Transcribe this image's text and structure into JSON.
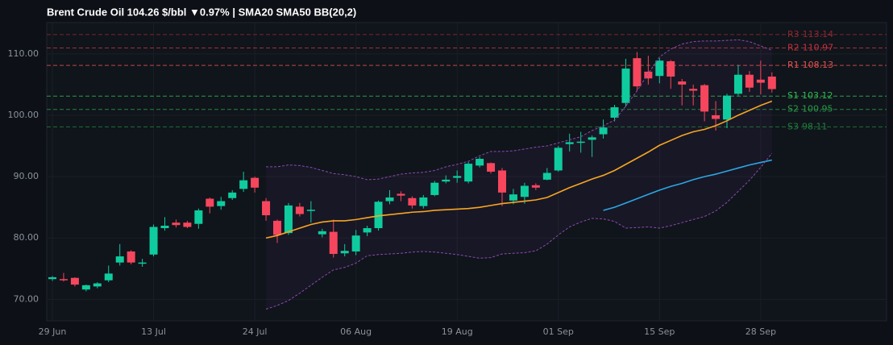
{
  "chart_data": {
    "type": "candlestick",
    "title": "Brent Crude Oil  104.26 $/bbl  ▼0.97%  |  SMA20  SMA50  BB(20,2)",
    "categories": [
      "29 Jun",
      null,
      null,
      null,
      null,
      null,
      null,
      null,
      null,
      "13 Jul",
      null,
      null,
      null,
      null,
      null,
      null,
      null,
      null,
      "24 Jul",
      null,
      null,
      null,
      null,
      null,
      null,
      null,
      null,
      "06 Aug",
      null,
      null,
      null,
      null,
      null,
      null,
      null,
      null,
      "19 Aug",
      null,
      null,
      null,
      null,
      null,
      null,
      null,
      null,
      "01 Sep",
      null,
      null,
      null,
      null,
      null,
      null,
      null,
      null,
      "15 Sep",
      null,
      null,
      null,
      null,
      null,
      null,
      null,
      null,
      "28 Sep",
      null
    ],
    "open": [
      73.3,
      73.3,
      73.5,
      71.6,
      72.1,
      73.1,
      76.0,
      77.8,
      75.8,
      77.3,
      81.6,
      82.5,
      82.5,
      82.3,
      86.4,
      85.2,
      86.5,
      88.0,
      89.8,
      86.0,
      82.8,
      80.8,
      85.1,
      84.4,
      80.6,
      81.0,
      77.5,
      77.8,
      80.9,
      81.6,
      86.0,
      87.2,
      86.5,
      85.2,
      87.0,
      89.2,
      89.8,
      89.2,
      91.8,
      92.2,
      91.0,
      86.1,
      86.7,
      88.6,
      89.5,
      91.0,
      95.3,
      95.5,
      96.0,
      96.9,
      99.6,
      102.0,
      109.3,
      107.1,
      106.4,
      108.8,
      105.5,
      104.3,
      104.9,
      100.0,
      99.3,
      103.5,
      106.6,
      105.8,
      106.3
    ],
    "high": [
      73.8,
      74.3,
      73.6,
      72.4,
      72.8,
      75.5,
      79.0,
      78.0,
      76.6,
      82.2,
      83.4,
      83.0,
      82.8,
      84.8,
      86.6,
      86.7,
      87.8,
      90.8,
      90.0,
      86.5,
      83.0,
      85.7,
      85.7,
      86.0,
      81.5,
      83.0,
      79.0,
      81.3,
      82.0,
      86.1,
      87.8,
      87.6,
      86.8,
      87.0,
      89.3,
      90.2,
      91.0,
      92.4,
      93.2,
      92.3,
      91.4,
      88.0,
      89.0,
      88.9,
      91.4,
      95.0,
      97.0,
      97.3,
      96.7,
      99.3,
      101.7,
      109.2,
      110.3,
      109.7,
      109.3,
      109.0,
      105.9,
      105.0,
      105.1,
      102.3,
      103.5,
      108.2,
      107.2,
      108.9,
      107.0
    ],
    "low": [
      73.0,
      72.9,
      72.1,
      71.3,
      71.8,
      72.8,
      75.5,
      75.7,
      75.3,
      77.0,
      81.2,
      81.7,
      81.6,
      81.5,
      84.0,
      84.6,
      86.2,
      87.5,
      87.4,
      82.8,
      79.2,
      80.5,
      83.5,
      82.5,
      80.1,
      76.8,
      77.0,
      77.2,
      80.3,
      81.2,
      85.5,
      86.0,
      84.8,
      84.8,
      86.8,
      88.9,
      89.0,
      88.9,
      91.5,
      90.5,
      85.2,
      85.5,
      85.6,
      87.8,
      89.4,
      90.8,
      94.1,
      93.9,
      93.2,
      96.2,
      99.0,
      101.4,
      103.9,
      105.0,
      105.2,
      104.3,
      101.6,
      101.6,
      99.0,
      97.5,
      97.9,
      103.2,
      103.8,
      103.4,
      103.7
    ],
    "close": [
      73.6,
      73.1,
      72.4,
      72.3,
      72.6,
      74.2,
      77.0,
      76.0,
      76.0,
      81.8,
      82.0,
      82.1,
      81.8,
      84.5,
      85.1,
      86.0,
      87.4,
      89.4,
      88.2,
      83.7,
      80.5,
      85.3,
      83.9,
      84.6,
      81.1,
      77.4,
      77.9,
      80.4,
      81.6,
      85.9,
      86.6,
      86.9,
      85.3,
      86.6,
      89.0,
      89.5,
      90.1,
      92.1,
      92.9,
      90.8,
      87.4,
      87.1,
      88.5,
      88.2,
      90.6,
      94.7,
      95.6,
      95.7,
      96.4,
      98.0,
      101.3,
      107.6,
      104.7,
      106.0,
      108.9,
      106.3,
      105.0,
      104.0,
      100.6,
      99.4,
      103.2,
      106.6,
      104.5,
      105.3,
      104.26
    ],
    "up_color": "#0fcc9f",
    "down_color": "#f6465d",
    "overlays": {
      "sma20": {
        "color": "#f5a623",
        "dash": false,
        "values": [
          null,
          null,
          null,
          null,
          null,
          null,
          null,
          null,
          null,
          null,
          null,
          null,
          null,
          null,
          null,
          null,
          null,
          null,
          null,
          80.0,
          80.4,
          81.0,
          81.6,
          82.2,
          82.6,
          82.8,
          82.8,
          83.0,
          83.3,
          83.6,
          83.8,
          84.0,
          84.2,
          84.3,
          84.5,
          84.6,
          84.7,
          84.8,
          85.0,
          85.3,
          85.6,
          85.8,
          86.0,
          86.2,
          86.6,
          87.4,
          88.2,
          88.9,
          89.6,
          90.2,
          91.0,
          92.0,
          93.0,
          94.0,
          95.1,
          95.9,
          96.7,
          97.3,
          97.7,
          98.3,
          99.1,
          100.0,
          100.8,
          101.6,
          102.3
        ]
      },
      "sma50": {
        "color": "#2aa7e4",
        "dash": false,
        "values": [
          null,
          null,
          null,
          null,
          null,
          null,
          null,
          null,
          null,
          null,
          null,
          null,
          null,
          null,
          null,
          null,
          null,
          null,
          null,
          null,
          null,
          null,
          null,
          null,
          null,
          null,
          null,
          null,
          null,
          null,
          null,
          null,
          null,
          null,
          null,
          null,
          null,
          null,
          null,
          null,
          null,
          null,
          null,
          null,
          null,
          null,
          null,
          null,
          null,
          84.5,
          85.0,
          85.7,
          86.4,
          87.1,
          87.8,
          88.4,
          88.9,
          89.5,
          90.0,
          90.4,
          90.9,
          91.4,
          91.9,
          92.3,
          92.7
        ]
      },
      "bb_upper": {
        "color": "#8a4bb0",
        "dash": true,
        "values": [
          null,
          null,
          null,
          null,
          null,
          null,
          null,
          null,
          null,
          null,
          null,
          null,
          null,
          null,
          null,
          null,
          null,
          null,
          null,
          91.6,
          91.6,
          91.9,
          91.8,
          91.5,
          91.0,
          90.5,
          90.3,
          90.0,
          89.5,
          89.6,
          90.0,
          90.4,
          90.6,
          90.7,
          91.0,
          91.6,
          92.0,
          92.5,
          93.4,
          94.1,
          94.1,
          94.2,
          94.5,
          94.8,
          95.0,
          95.5,
          96.0,
          96.5,
          97.5,
          98.3,
          99.2,
          101.5,
          104.0,
          106.8,
          109.5,
          110.8,
          111.6,
          112.0,
          112.1,
          112.1,
          112.2,
          112.3,
          112.0,
          111.3,
          110.6
        ]
      },
      "bb_lower": {
        "color": "#8a4bb0",
        "dash": true,
        "values": [
          null,
          null,
          null,
          null,
          null,
          null,
          null,
          null,
          null,
          null,
          null,
          null,
          null,
          null,
          null,
          null,
          null,
          null,
          null,
          68.4,
          69.0,
          69.8,
          71.0,
          72.3,
          73.6,
          74.8,
          75.2,
          75.9,
          77.1,
          77.3,
          77.4,
          77.5,
          77.7,
          77.8,
          77.7,
          77.5,
          77.3,
          77.0,
          76.7,
          76.8,
          77.4,
          77.5,
          77.6,
          77.9,
          79.0,
          80.5,
          81.8,
          82.6,
          83.2,
          83.1,
          82.7,
          81.6,
          81.7,
          81.8,
          81.6,
          82.0,
          82.5,
          83.0,
          83.5,
          84.4,
          85.8,
          87.6,
          89.4,
          91.5,
          93.8
        ]
      }
    },
    "levels": [
      {
        "name": "R3",
        "value": 113.14,
        "color": "#8c2a2f"
      },
      {
        "name": "R2",
        "value": 110.97,
        "color": "#c0323c"
      },
      {
        "name": "R1",
        "value": 108.13,
        "color": "#e0524f"
      },
      {
        "name": "S1",
        "value": 103.12,
        "color": "#2fb84f"
      },
      {
        "name": "S2",
        "value": 100.95,
        "color": "#279a45"
      },
      {
        "name": "S3",
        "value": 98.11,
        "color": "#1f7f3a"
      }
    ],
    "ylim": [
      66.5,
      115.1
    ],
    "yticks": [
      {
        "value": 70,
        "label": "70.00"
      },
      {
        "value": 80,
        "label": "80.00"
      },
      {
        "value": 90,
        "label": "90.00"
      },
      {
        "value": 100,
        "label": "100.00"
      },
      {
        "value": 110,
        "label": "110.00"
      }
    ],
    "grid": true
  }
}
